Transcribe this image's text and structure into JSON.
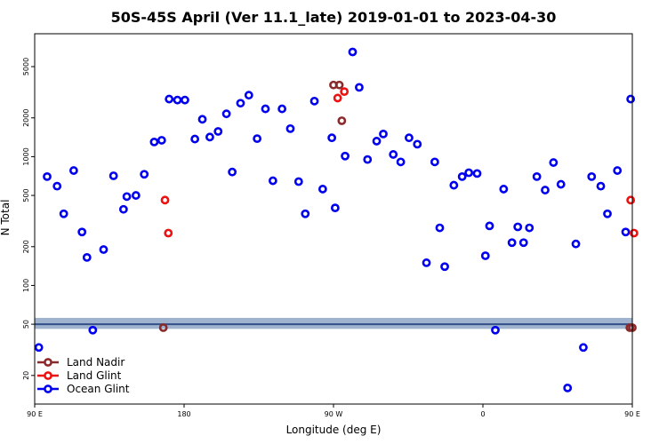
{
  "chart_data": {
    "type": "scatter",
    "title": "50S-45S April (Ver 11.1_late)   2019-01-01 to 2023-04-30",
    "xlabel": "Longitude (deg E)",
    "ylabel": "N Total",
    "y_scale": "log",
    "xlim": [
      90,
      450
    ],
    "ylim": [
      12,
      9000
    ],
    "x_ticks": [
      {
        "value": 90,
        "label": "90 E"
      },
      {
        "value": 180,
        "label": "180"
      },
      {
        "value": 270,
        "label": "90 W"
      },
      {
        "value": 360,
        "label": "0"
      },
      {
        "value": 450,
        "label": "90 E"
      },
      {
        "value": 540,
        "label": "180"
      }
    ],
    "y_ticks": [
      {
        "value": 20,
        "label": "20"
      },
      {
        "value": 50,
        "label": "50"
      },
      {
        "value": 100,
        "label": "100"
      },
      {
        "value": 200,
        "label": "200"
      },
      {
        "value": 500,
        "label": "500"
      },
      {
        "value": 1000,
        "label": "1000"
      },
      {
        "value": 2000,
        "label": "2000"
      },
      {
        "value": 5000,
        "label": "5000"
      }
    ],
    "threshold_line": {
      "value": 50,
      "color": "#334f8a",
      "band": [
        46,
        56
      ],
      "band_color": "#9fb3cf"
    },
    "legend_position": "bottom-left",
    "series": [
      {
        "name": "Land Nadir",
        "color": "#8b2a2a",
        "points": [
          [
            167.5,
            47
          ],
          [
            273.5,
            3600
          ],
          [
            270,
            3600
          ],
          [
            275,
            1900
          ],
          [
            448.5,
            47
          ],
          [
            450,
            47
          ]
        ]
      },
      {
        "name": "Land Glint",
        "color": "#ee1111",
        "points": [
          [
            168.5,
            460
          ],
          [
            170.5,
            255
          ],
          [
            272.5,
            2850
          ],
          [
            276.5,
            3200
          ],
          [
            449,
            460
          ],
          [
            451,
            255
          ]
        ]
      },
      {
        "name": "Ocean Glint",
        "color": "#0000ee",
        "points": [
          [
            92.5,
            33
          ],
          [
            97.5,
            700
          ],
          [
            103.5,
            590
          ],
          [
            107.5,
            360
          ],
          [
            113.5,
            780
          ],
          [
            118.5,
            260
          ],
          [
            121.5,
            165
          ],
          [
            125,
            45
          ],
          [
            131.5,
            190
          ],
          [
            137.5,
            710
          ],
          [
            143.5,
            390
          ],
          [
            145.5,
            490
          ],
          [
            151,
            500
          ],
          [
            156,
            730
          ],
          [
            162,
            1300
          ],
          [
            166.5,
            1340
          ],
          [
            171,
            2800
          ],
          [
            176,
            2750
          ],
          [
            180.5,
            2750
          ],
          [
            186.5,
            1370
          ],
          [
            191,
            1950
          ],
          [
            195.5,
            1420
          ],
          [
            200.5,
            1570
          ],
          [
            205.5,
            2150
          ],
          [
            209,
            760
          ],
          [
            214,
            2600
          ],
          [
            219,
            3000
          ],
          [
            224,
            1380
          ],
          [
            229,
            2350
          ],
          [
            233.5,
            650
          ],
          [
            239,
            2350
          ],
          [
            244,
            1650
          ],
          [
            249,
            640
          ],
          [
            253,
            360
          ],
          [
            258.5,
            2700
          ],
          [
            263.5,
            560
          ],
          [
            269,
            1400
          ],
          [
            271,
            400
          ],
          [
            277,
            1010
          ],
          [
            281.5,
            6500
          ],
          [
            285.5,
            3450
          ],
          [
            290.5,
            950
          ],
          [
            296,
            1320
          ],
          [
            300,
            1500
          ],
          [
            306,
            1040
          ],
          [
            310.5,
            910
          ],
          [
            315.5,
            1400
          ],
          [
            320.5,
            1250
          ],
          [
            326,
            150
          ],
          [
            331,
            910
          ],
          [
            334,
            280
          ],
          [
            337,
            140
          ],
          [
            342.5,
            600
          ],
          [
            347.5,
            700
          ],
          [
            351.5,
            750
          ],
          [
            356.5,
            740
          ],
          [
            361.5,
            170
          ],
          [
            364,
            290
          ],
          [
            367.5,
            45
          ],
          [
            372.5,
            560
          ],
          [
            377.5,
            215
          ],
          [
            381,
            285
          ],
          [
            384.5,
            215
          ],
          [
            388,
            280
          ],
          [
            392.5,
            700
          ],
          [
            397.5,
            550
          ],
          [
            402.5,
            900
          ],
          [
            407,
            610
          ],
          [
            411,
            16
          ],
          [
            416,
            210
          ],
          [
            420.5,
            33
          ],
          [
            425.5,
            700
          ],
          [
            431,
            590
          ],
          [
            435,
            360
          ],
          [
            441,
            780
          ],
          [
            446,
            260
          ],
          [
            449,
            2800
          ],
          [
            452,
            2750
          ]
        ]
      }
    ]
  }
}
